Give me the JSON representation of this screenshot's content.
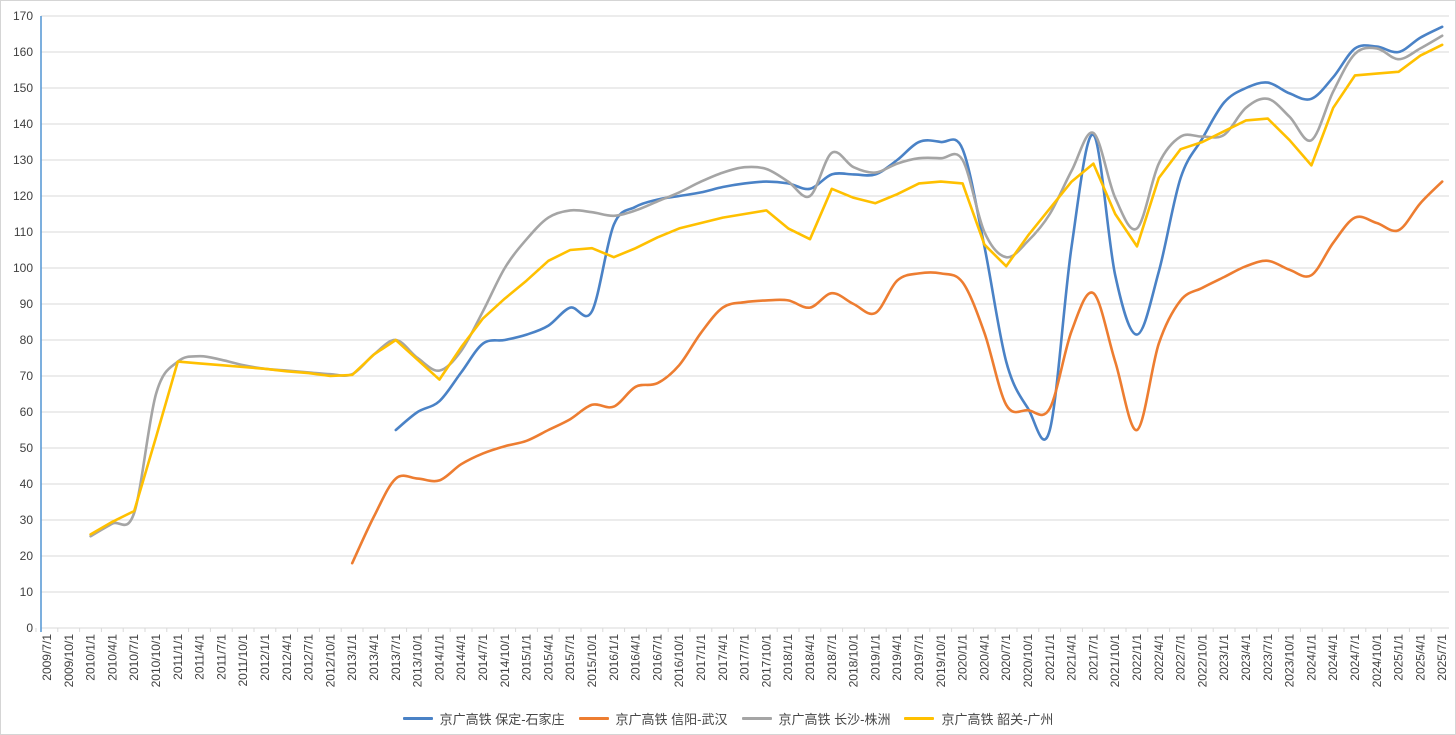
{
  "chart_data": {
    "type": "line",
    "title": "",
    "legend_position": "bottom",
    "grid": true,
    "x_axis": {
      "tick_label_rotation": -90,
      "categories": [
        "2009/7/1",
        "2009/10/1",
        "2010/1/1",
        "2010/4/1",
        "2010/7/1",
        "2010/10/1",
        "2011/1/1",
        "2011/4/1",
        "2011/7/1",
        "2011/10/1",
        "2012/1/1",
        "2012/4/1",
        "2012/7/1",
        "2012/10/1",
        "2013/1/1",
        "2013/4/1",
        "2013/7/1",
        "2013/10/1",
        "2014/1/1",
        "2014/4/1",
        "2014/7/1",
        "2014/10/1",
        "2015/1/1",
        "2015/4/1",
        "2015/7/1",
        "2015/10/1",
        "2016/1/1",
        "2016/4/1",
        "2016/7/1",
        "2016/10/1",
        "2017/1/1",
        "2017/4/1",
        "2017/7/1",
        "2017/10/1",
        "2018/1/1",
        "2018/4/1",
        "2018/7/1",
        "2018/10/1",
        "2019/1/1",
        "2019/4/1",
        "2019/7/1",
        "2019/10/1",
        "2020/1/1",
        "2020/4/1",
        "2020/7/1",
        "2020/10/1",
        "2021/1/1",
        "2021/4/1",
        "2021/7/1",
        "2021/10/1",
        "2022/1/1",
        "2022/4/1",
        "2022/7/1",
        "2022/10/1",
        "2023/1/1",
        "2023/4/1",
        "2023/7/1",
        "2023/10/1",
        "2024/1/1",
        "2024/4/1",
        "2024/7/1",
        "2024/10/1",
        "2025/1/1",
        "2025/4/1",
        "2025/7/1"
      ]
    },
    "y_axis": {
      "min": 0,
      "max": 170,
      "step": 10,
      "tick_labels": [
        "0",
        "10",
        "20",
        "30",
        "40",
        "50",
        "60",
        "70",
        "80",
        "90",
        "100",
        "110",
        "120",
        "130",
        "140",
        "150",
        "160",
        "170"
      ]
    },
    "series": [
      {
        "name": "京广高铁 保定-石家庄",
        "color": "#4A82C6",
        "smooth": true,
        "values": [
          null,
          null,
          null,
          null,
          null,
          null,
          null,
          null,
          null,
          null,
          null,
          null,
          null,
          null,
          null,
          null,
          55,
          60,
          63,
          71,
          79,
          80,
          81.5,
          84,
          89,
          88,
          112,
          117,
          119,
          120,
          121,
          122.5,
          123.5,
          124,
          123.5,
          122,
          126,
          126,
          126,
          130,
          135,
          135,
          133,
          106,
          74,
          61,
          55,
          106,
          137,
          98,
          81.5,
          99,
          125,
          136,
          146,
          150,
          151.5,
          148.5,
          147,
          153,
          161,
          161.5,
          160,
          164,
          167
        ]
      },
      {
        "name": "京广高铁 信阳-武汉",
        "color": "#ED7D31",
        "smooth": true,
        "values": [
          null,
          null,
          null,
          null,
          null,
          null,
          null,
          null,
          null,
          null,
          null,
          null,
          null,
          null,
          18,
          31,
          41.5,
          41.5,
          41,
          45.5,
          48.5,
          50.5,
          52,
          55,
          58,
          62,
          61.5,
          67,
          68,
          73,
          82,
          89,
          90.5,
          91,
          91,
          89,
          93,
          90,
          87.5,
          96.5,
          98.5,
          98.5,
          96,
          82,
          62,
          60.5,
          61,
          82.5,
          93,
          74,
          55,
          79,
          91,
          94.5,
          97.5,
          100.5,
          102,
          99.5,
          98,
          107,
          114,
          112.5,
          110.5,
          118,
          124
        ]
      },
      {
        "name": "京广高铁 长沙-株洲",
        "color": "#A5A5A5",
        "smooth": true,
        "values": [
          null,
          null,
          25.5,
          29,
          32,
          65,
          74,
          75.5,
          74.5,
          73,
          72,
          71.5,
          71,
          70.5,
          70.5,
          76,
          80,
          75,
          71.5,
          77,
          88,
          100,
          108,
          114,
          116,
          115.5,
          114.5,
          116,
          118.5,
          121,
          124,
          126.5,
          128,
          127.5,
          124,
          120,
          132,
          128,
          126.5,
          129,
          130.5,
          130.5,
          130,
          110,
          103,
          107.5,
          115,
          127,
          137.5,
          119.5,
          111,
          129,
          136.5,
          136.5,
          137,
          144.5,
          147,
          142,
          135.5,
          149,
          159.5,
          161,
          158,
          161,
          164.5
        ]
      },
      {
        "name": "京广高铁 韶关-广州",
        "color": "#FFC000",
        "smooth": false,
        "values": [
          null,
          null,
          26,
          29.5,
          32.5,
          53,
          74,
          73.5,
          73,
          72.5,
          72,
          71.3,
          70.8,
          70,
          70.3,
          76,
          80,
          74.5,
          69,
          78,
          86,
          91.5,
          96.5,
          102,
          105,
          105.5,
          103,
          105.5,
          108.5,
          111,
          112.5,
          114,
          115,
          116,
          111,
          108,
          122,
          119.5,
          118,
          120.5,
          123.5,
          124,
          123.5,
          106.5,
          100.5,
          109,
          116.5,
          124,
          129,
          115,
          106,
          125,
          133,
          135,
          138,
          141,
          141.5,
          135.5,
          128.5,
          144.5,
          153.5,
          154,
          154.5,
          159,
          162
        ]
      }
    ],
    "style": {
      "gridline_color": "#d9d9d9",
      "y_axis_line_color": "#5B9BD5",
      "x_axis_line_color": "#d9d9d9",
      "tick_mark_color": "#d9d9d9",
      "tick_label_color": "#404040",
      "legend_text_color": "#474747",
      "line_width": 2.6
    }
  }
}
